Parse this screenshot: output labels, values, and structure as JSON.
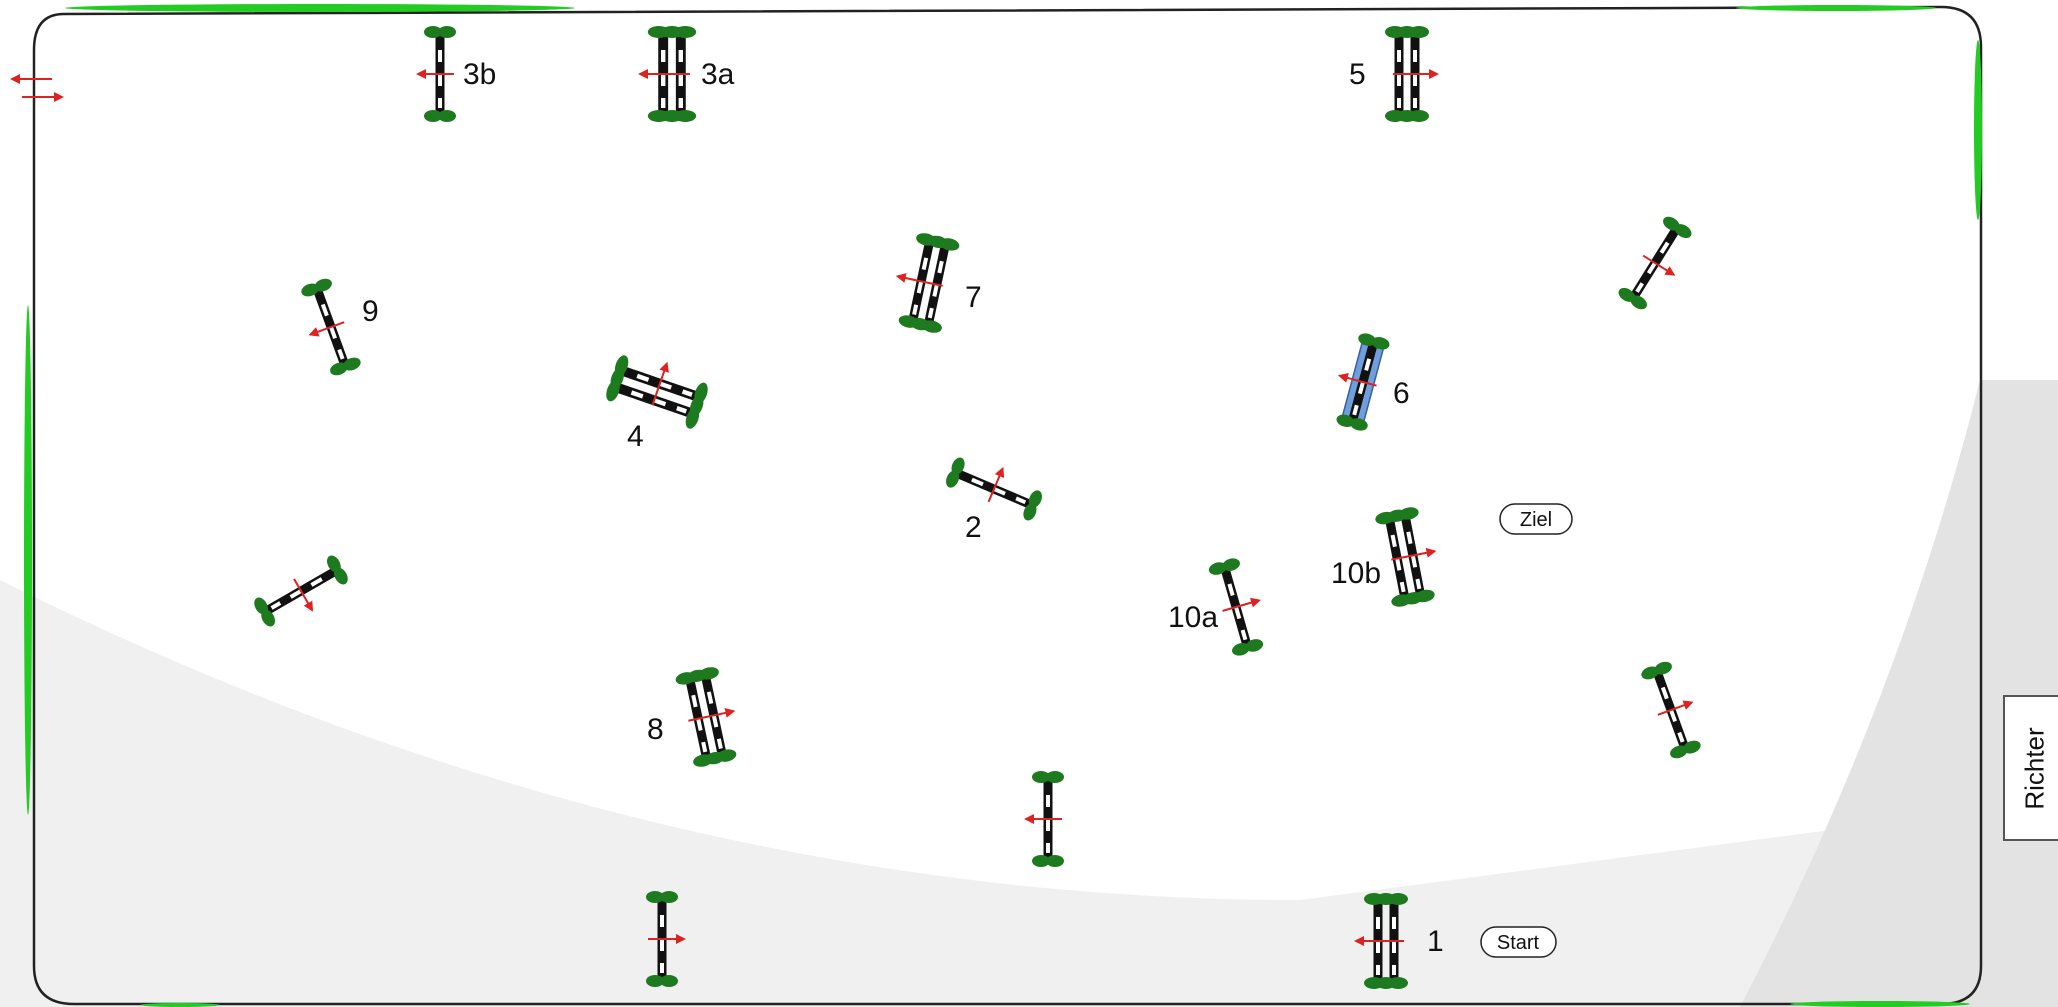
{
  "course": {
    "obstacles": [
      {
        "id": "obstacle-1",
        "label": "1"
      },
      {
        "id": "obstacle-2",
        "label": "2"
      },
      {
        "id": "obstacle-3a",
        "label": "3a"
      },
      {
        "id": "obstacle-3b",
        "label": "3b"
      },
      {
        "id": "obstacle-4",
        "label": "4"
      },
      {
        "id": "obstacle-5",
        "label": "5"
      },
      {
        "id": "obstacle-6",
        "label": "6"
      },
      {
        "id": "obstacle-7",
        "label": "7"
      },
      {
        "id": "obstacle-8",
        "label": "8"
      },
      {
        "id": "obstacle-9",
        "label": "9"
      },
      {
        "id": "obstacle-10a",
        "label": "10a"
      },
      {
        "id": "obstacle-10b",
        "label": "10b"
      }
    ],
    "start_label": "Start",
    "finish_label": "Ziel",
    "judge_label": "Richter"
  },
  "colors": {
    "pole_dark": "#111111",
    "pole_light": "#ffffff",
    "standard_green": "#1e7a1e",
    "hedge_green": "#22cc22",
    "direction_arrow": "#dd2222",
    "water_blue": "#6f9fdc",
    "arena_border": "#222222",
    "background_grey": "#ececec"
  }
}
